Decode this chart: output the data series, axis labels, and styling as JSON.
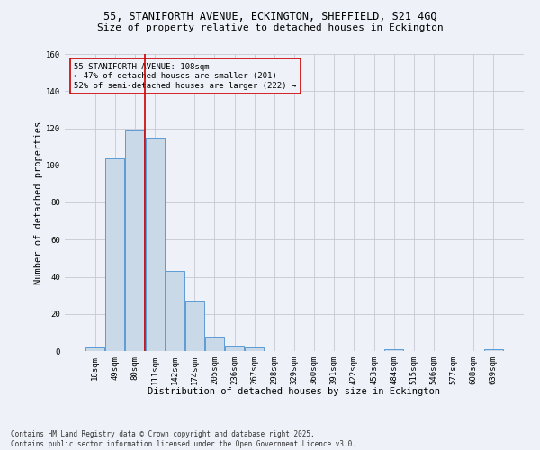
{
  "title_line1": "55, STANIFORTH AVENUE, ECKINGTON, SHEFFIELD, S21 4GQ",
  "title_line2": "Size of property relative to detached houses in Eckington",
  "xlabel": "Distribution of detached houses by size in Eckington",
  "ylabel": "Number of detached properties",
  "categories": [
    "18sqm",
    "49sqm",
    "80sqm",
    "111sqm",
    "142sqm",
    "174sqm",
    "205sqm",
    "236sqm",
    "267sqm",
    "298sqm",
    "329sqm",
    "360sqm",
    "391sqm",
    "422sqm",
    "453sqm",
    "484sqm",
    "515sqm",
    "546sqm",
    "577sqm",
    "608sqm",
    "639sqm"
  ],
  "values": [
    2,
    104,
    119,
    115,
    43,
    27,
    8,
    3,
    2,
    0,
    0,
    0,
    0,
    0,
    0,
    1,
    0,
    0,
    0,
    0,
    1
  ],
  "bar_color": "#c9d9e8",
  "bar_edge_color": "#5b9bd5",
  "grid_color": "#c8c8d4",
  "bg_color": "#eef2f8",
  "vline_x": 2.5,
  "vline_color": "#cc0000",
  "annotation_text": "55 STANIFORTH AVENUE: 108sqm\n← 47% of detached houses are smaller (201)\n52% of semi-detached houses are larger (222) →",
  "annotation_box_color": "#cc0000",
  "ylim": [
    0,
    160
  ],
  "yticks": [
    0,
    20,
    40,
    60,
    80,
    100,
    120,
    140,
    160
  ],
  "footer_line1": "Contains HM Land Registry data © Crown copyright and database right 2025.",
  "footer_line2": "Contains public sector information licensed under the Open Government Licence v3.0.",
  "title_fontsize": 8.5,
  "subtitle_fontsize": 8.0,
  "axis_label_fontsize": 7.5,
  "tick_fontsize": 6.5,
  "annotation_fontsize": 6.5,
  "footer_fontsize": 5.5
}
